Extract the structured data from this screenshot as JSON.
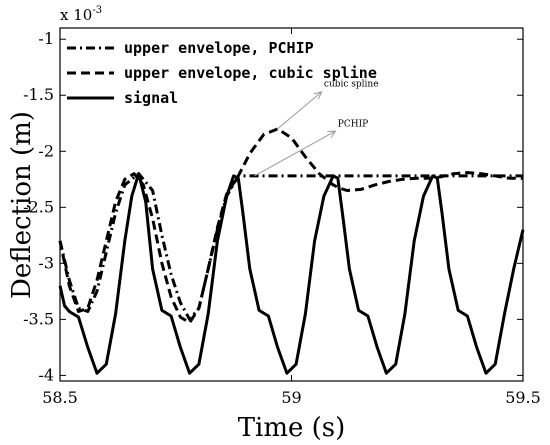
{
  "chart_data": {
    "type": "line",
    "xlabel": "Time (s)",
    "ylabel": "Deflection (m)",
    "y_multiplier_label": "x 10",
    "y_multiplier_exponent": "-3",
    "xlim": [
      58.5,
      59.5
    ],
    "ylim": [
      -4.05,
      -0.9
    ],
    "xticks": [
      58.5,
      59,
      59.5
    ],
    "xtick_labels": [
      "58.5",
      "59",
      "59.5"
    ],
    "yticks": [
      -1,
      -1.5,
      -2,
      -2.5,
      -3,
      -3.5,
      -4
    ],
    "ytick_labels": [
      "-1",
      "-1.5",
      "-2",
      "-2.5",
      "-3",
      "-3.5",
      "-4"
    ],
    "grid": false,
    "legend_position": "top-left",
    "series": [
      {
        "name": "upper envelope, PCHIP",
        "style": "dashdot",
        "color": "#000000",
        "x": [
          58.5,
          58.52,
          58.54,
          58.56,
          58.58,
          58.6,
          58.62,
          58.64,
          58.67,
          58.7,
          58.72,
          58.74,
          58.76,
          58.78,
          58.8,
          58.82,
          58.84,
          58.86,
          58.885,
          58.95,
          59.0,
          59.05,
          59.1,
          59.15,
          59.2,
          59.25,
          59.3,
          59.35,
          59.4,
          59.45,
          59.5
        ],
        "y": [
          -2.8,
          -3.15,
          -3.4,
          -3.43,
          -3.25,
          -2.9,
          -2.55,
          -2.3,
          -2.2,
          -2.35,
          -2.75,
          -3.1,
          -3.35,
          -3.5,
          -3.4,
          -3.05,
          -2.7,
          -2.4,
          -2.22,
          -2.22,
          -2.22,
          -2.22,
          -2.22,
          -2.22,
          -2.22,
          -2.22,
          -2.22,
          -2.22,
          -2.22,
          -2.22,
          -2.22
        ]
      },
      {
        "name": "upper envelope, cubic spline",
        "style": "dashed",
        "color": "#000000",
        "x": [
          58.5,
          58.52,
          58.54,
          58.56,
          58.58,
          58.6,
          58.62,
          58.64,
          58.66,
          58.68,
          58.7,
          58.72,
          58.74,
          58.76,
          58.78,
          58.8,
          58.82,
          58.84,
          58.86,
          58.885,
          58.91,
          58.94,
          58.97,
          59.0,
          59.03,
          59.06,
          59.09,
          59.105,
          59.12,
          59.15,
          59.18,
          59.21,
          59.24,
          59.27,
          59.3,
          59.32,
          59.35,
          59.38,
          59.41,
          59.44,
          59.47,
          59.5
        ],
        "y": [
          -2.8,
          -3.2,
          -3.43,
          -3.4,
          -3.15,
          -2.8,
          -2.45,
          -2.25,
          -2.2,
          -2.3,
          -2.6,
          -3.0,
          -3.3,
          -3.48,
          -3.53,
          -3.4,
          -3.05,
          -2.68,
          -2.38,
          -2.22,
          -2.02,
          -1.85,
          -1.8,
          -1.88,
          -2.05,
          -2.2,
          -2.3,
          -2.33,
          -2.35,
          -2.34,
          -2.3,
          -2.27,
          -2.25,
          -2.24,
          -2.24,
          -2.23,
          -2.2,
          -2.19,
          -2.2,
          -2.22,
          -2.24,
          -2.24
        ]
      },
      {
        "name": "signal",
        "style": "solid",
        "color": "#000000",
        "x": [
          58.5,
          58.51,
          58.52,
          58.54,
          58.56,
          58.58,
          58.6,
          58.62,
          58.64,
          58.655,
          58.67,
          58.685,
          58.7,
          58.72,
          58.74,
          58.76,
          58.78,
          58.8,
          58.82,
          58.84,
          58.86,
          58.875,
          58.885,
          58.895,
          58.91,
          58.93,
          58.95,
          58.97,
          58.99,
          59.01,
          59.03,
          59.05,
          59.07,
          59.09,
          59.1,
          59.11,
          59.125,
          59.145,
          59.165,
          59.185,
          59.205,
          59.225,
          59.245,
          59.265,
          59.285,
          59.305,
          59.315,
          59.325,
          59.34,
          59.36,
          59.38,
          59.4,
          59.42,
          59.44,
          59.46,
          59.48,
          59.5
        ],
        "y": [
          -3.2,
          -3.38,
          -3.43,
          -3.48,
          -3.75,
          -3.98,
          -3.9,
          -3.45,
          -2.8,
          -2.4,
          -2.2,
          -2.45,
          -3.05,
          -3.42,
          -3.47,
          -3.75,
          -3.98,
          -3.9,
          -3.45,
          -2.8,
          -2.4,
          -2.22,
          -2.24,
          -2.55,
          -3.05,
          -3.42,
          -3.47,
          -3.75,
          -3.98,
          -3.9,
          -3.45,
          -2.8,
          -2.4,
          -2.22,
          -2.24,
          -2.55,
          -3.05,
          -3.42,
          -3.47,
          -3.75,
          -3.98,
          -3.9,
          -3.45,
          -2.8,
          -2.4,
          -2.22,
          -2.24,
          -2.55,
          -3.05,
          -3.42,
          -3.47,
          -3.75,
          -3.98,
          -3.9,
          -3.45,
          -3.05,
          -2.7
        ]
      }
    ],
    "annotations": [
      {
        "text": "cubic spline",
        "x": 59.07,
        "y": -1.42,
        "arrow_from": [
          58.97,
          -1.8
        ],
        "arrow_to": [
          59.065,
          -1.47
        ]
      },
      {
        "text": "PCHIP",
        "x": 59.1,
        "y": -1.78,
        "arrow_from": [
          58.92,
          -2.22
        ],
        "arrow_to": [
          59.095,
          -1.82
        ]
      }
    ]
  }
}
